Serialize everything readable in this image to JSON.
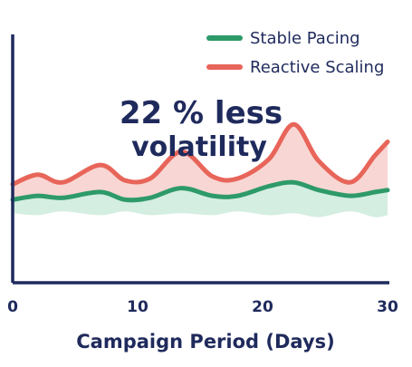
{
  "chart_data": {
    "type": "area",
    "xlabel": "Campaign Period (Days)",
    "ylabel": "",
    "title": "",
    "xlim": [
      0,
      30
    ],
    "x_ticks": [
      "0",
      "10",
      "20",
      "30"
    ],
    "legend_position": "top-right",
    "grid": false,
    "x": [
      0,
      2,
      4,
      7,
      9,
      11,
      13.5,
      16,
      18,
      20.5,
      22.5,
      24.5,
      27,
      29,
      30
    ],
    "series": [
      {
        "name": "Stable Pacing",
        "color": "#2e9a6a",
        "band_color": "#d4eee1",
        "values": [
          4.3,
          4.5,
          4.4,
          4.7,
          4.3,
          4.4,
          4.9,
          4.5,
          4.5,
          5.0,
          5.2,
          4.8,
          4.5,
          4.7,
          4.8
        ],
        "band_low": [
          3.6,
          3.5,
          3.7,
          3.5,
          3.7,
          3.5,
          3.6,
          3.5,
          3.7,
          3.5,
          3.6,
          3.4,
          3.7,
          3.4,
          3.5
        ]
      },
      {
        "name": "Reactive Scaling",
        "color": "#e8655a",
        "band_color": "#f8d6d3",
        "values": [
          5.1,
          5.6,
          5.2,
          6.1,
          5.3,
          5.4,
          6.8,
          5.5,
          5.4,
          6.4,
          8.2,
          6.3,
          5.2,
          6.6,
          7.3
        ]
      }
    ],
    "annotation": {
      "line1": "22 % less",
      "line2": "volatility"
    }
  }
}
